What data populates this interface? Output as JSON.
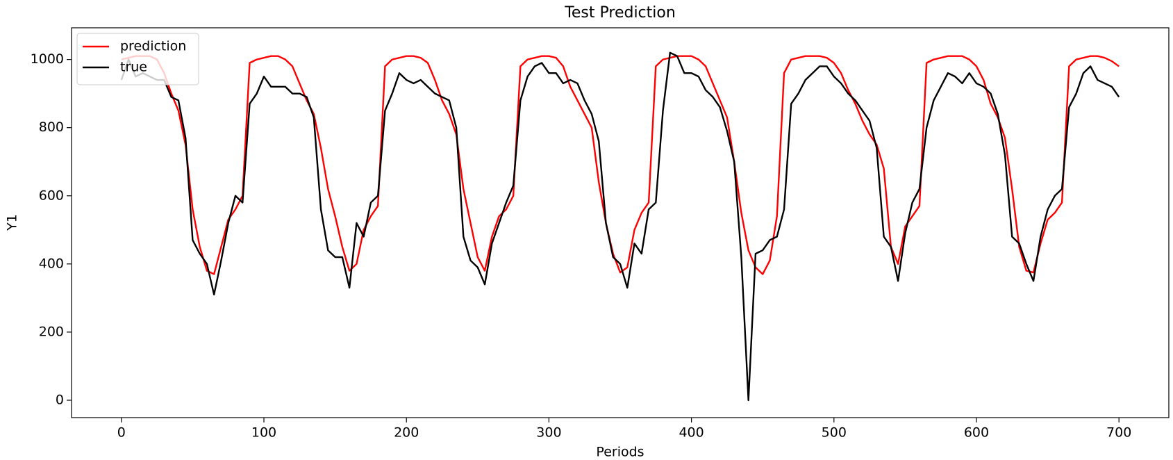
{
  "chart_data": {
    "type": "line",
    "title": "Test Prediction",
    "x_label": "Periods",
    "y_label": "Y1",
    "x": [
      0,
      5,
      10,
      15,
      20,
      25,
      30,
      35,
      40,
      45,
      50,
      55,
      60,
      65,
      70,
      75,
      80,
      85,
      90,
      95,
      100,
      105,
      110,
      115,
      120,
      125,
      130,
      135,
      140,
      145,
      150,
      155,
      160,
      165,
      170,
      175,
      180,
      185,
      190,
      195,
      200,
      205,
      210,
      215,
      220,
      225,
      230,
      235,
      240,
      245,
      250,
      255,
      260,
      265,
      270,
      275,
      280,
      285,
      290,
      295,
      300,
      305,
      310,
      315,
      320,
      325,
      330,
      335,
      340,
      345,
      350,
      355,
      360,
      365,
      370,
      375,
      380,
      385,
      390,
      395,
      400,
      405,
      410,
      415,
      420,
      425,
      430,
      435,
      440,
      445,
      450,
      455,
      460,
      465,
      470,
      475,
      480,
      485,
      490,
      495,
      500,
      505,
      510,
      515,
      520,
      525,
      530,
      535,
      540,
      545,
      550,
      555,
      560,
      565,
      570,
      575,
      580,
      585,
      590,
      595,
      600,
      605,
      610,
      615,
      620,
      625,
      630,
      635,
      640,
      645,
      650,
      655,
      660,
      665,
      670,
      675,
      680,
      685,
      690,
      695,
      700
    ],
    "series": [
      {
        "name": "prediction",
        "color": "#ff0000",
        "values": [
          1000,
          1005,
          1010,
          1010,
          1010,
          1000,
          960,
          900,
          850,
          750,
          560,
          450,
          380,
          370,
          450,
          530,
          560,
          600,
          990,
          1000,
          1005,
          1010,
          1010,
          1000,
          980,
          930,
          880,
          840,
          740,
          620,
          540,
          450,
          380,
          400,
          500,
          540,
          570,
          980,
          1000,
          1005,
          1010,
          1010,
          1005,
          990,
          940,
          880,
          840,
          780,
          620,
          520,
          420,
          380,
          480,
          540,
          560,
          600,
          980,
          1000,
          1005,
          1010,
          1010,
          1005,
          980,
          920,
          880,
          840,
          800,
          640,
          520,
          430,
          375,
          390,
          500,
          550,
          580,
          980,
          1000,
          1005,
          1010,
          1010,
          1010,
          1000,
          980,
          930,
          880,
          830,
          700,
          550,
          440,
          390,
          370,
          410,
          540,
          960,
          1000,
          1005,
          1010,
          1010,
          1010,
          1005,
          990,
          960,
          910,
          870,
          820,
          780,
          750,
          680,
          450,
          400,
          510,
          540,
          570,
          990,
          1000,
          1005,
          1010,
          1010,
          1010,
          1000,
          980,
          940,
          870,
          830,
          770,
          620,
          450,
          380,
          375,
          460,
          530,
          550,
          580,
          980,
          1000,
          1005,
          1010,
          1010,
          1005,
          995,
          980
        ]
      },
      {
        "name": "true",
        "color": "#000000",
        "values": [
          940,
          1000,
          950,
          960,
          950,
          940,
          940,
          890,
          880,
          770,
          470,
          430,
          400,
          310,
          410,
          520,
          600,
          580,
          870,
          900,
          950,
          920,
          920,
          920,
          900,
          900,
          890,
          830,
          560,
          440,
          420,
          420,
          330,
          520,
          480,
          580,
          600,
          850,
          900,
          960,
          940,
          930,
          940,
          920,
          900,
          890,
          880,
          800,
          480,
          410,
          390,
          340,
          460,
          520,
          580,
          630,
          880,
          950,
          980,
          990,
          960,
          960,
          930,
          940,
          930,
          880,
          840,
          760,
          520,
          420,
          400,
          330,
          460,
          430,
          560,
          580,
          850,
          1020,
          1010,
          960,
          960,
          950,
          910,
          890,
          860,
          790,
          700,
          420,
          0,
          430,
          440,
          470,
          480,
          560,
          870,
          900,
          940,
          960,
          980,
          980,
          950,
          930,
          900,
          880,
          850,
          820,
          740,
          480,
          450,
          350,
          490,
          580,
          620,
          800,
          880,
          920,
          960,
          950,
          930,
          960,
          930,
          920,
          900,
          840,
          720,
          480,
          460,
          400,
          350,
          480,
          560,
          600,
          620,
          860,
          900,
          960,
          980,
          940,
          930,
          920,
          890
        ]
      }
    ],
    "xlim": [
      -35,
      735
    ],
    "ylim": [
      -51,
      1093
    ],
    "xticks": [
      0,
      100,
      200,
      300,
      400,
      500,
      600,
      700
    ],
    "yticks": [
      0,
      200,
      400,
      600,
      800,
      1000
    ],
    "legend": "upper left"
  }
}
